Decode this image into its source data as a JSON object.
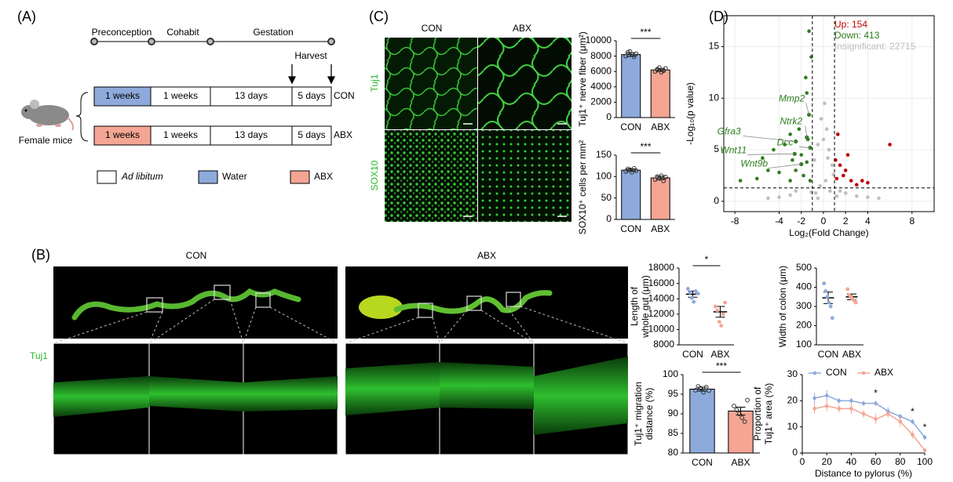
{
  "panel_a": {
    "label": "(A)",
    "phases": [
      "Preconception",
      "Cohabit",
      "Gestation"
    ],
    "harvest": "Harvest",
    "rows": [
      {
        "cells": [
          "1 weeks",
          "1 weeks",
          "13 days",
          "5 days"
        ],
        "group": "CON"
      },
      {
        "cells": [
          "1 weeks",
          "1 weeks",
          "13 days",
          "5 days"
        ],
        "group": "ABX"
      }
    ],
    "subject": "Female mice",
    "legend": [
      "Ad libitum",
      "Water",
      "ABX"
    ]
  },
  "panel_b": {
    "label": "(B)",
    "columns": [
      "CON",
      "ABX"
    ],
    "stain": "Tuj1"
  },
  "panel_c": {
    "label": "(C)",
    "columns": [
      "CON",
      "ABX"
    ],
    "rows": [
      "Tuj1",
      "SOX10"
    ]
  },
  "panel_d": {
    "label": "(D)"
  },
  "chart_data": [
    {
      "type": "bar",
      "ylabel": [
        "Tuj1⁺ nerve fiber (μm²)"
      ],
      "categories": [
        "CON",
        "ABX"
      ],
      "values": [
        8200,
        6200
      ],
      "errors": [
        250,
        200
      ],
      "points": [
        [
          8000,
          8500,
          8600,
          8200,
          7900,
          8300
        ],
        [
          6000,
          6300,
          6500,
          5900,
          6100,
          6400
        ]
      ],
      "colors": [
        "#8eaadb",
        "#f4a593"
      ],
      "ylim": [
        0,
        10000
      ],
      "yticks": [
        0,
        2000,
        4000,
        6000,
        8000,
        10000
      ],
      "annotation": "***"
    },
    {
      "type": "bar",
      "ylabel": [
        "SOX10⁺ cells per mm²"
      ],
      "categories": [
        "CON",
        "ABX"
      ],
      "values": [
        115,
        97
      ],
      "errors": [
        3,
        4
      ],
      "points": [
        [
          112,
          118,
          116,
          110,
          119,
          114
        ],
        [
          93,
          100,
          96,
          102,
          90,
          99
        ]
      ],
      "colors": [
        "#8eaadb",
        "#f4a593"
      ],
      "ylim": [
        0,
        150
      ],
      "yticks": [
        0,
        50,
        100,
        150
      ],
      "annotation": "***"
    },
    {
      "type": "scatter",
      "xlabel": "Log₂(Fold Change)",
      "ylabel": [
        "-Log₁₀(p value)"
      ],
      "xlim": [
        -9,
        10
      ],
      "ylim": [
        -1,
        18
      ],
      "xticks": [
        -8,
        -4,
        -2,
        0,
        2,
        4,
        8
      ],
      "yticks": [
        0,
        5,
        10,
        15
      ],
      "grid": true,
      "fc_cutoff": [
        -1,
        1
      ],
      "p_cutoff": 1.3,
      "series": [
        {
          "name": "Up: 154",
          "color": "#c00000",
          "x": [
            1.1,
            1.5,
            2,
            2.5,
            3.5,
            1.3,
            1.8,
            4,
            6,
            1.2,
            3,
            2.2
          ],
          "values": [
            4,
            3.5,
            3,
            2,
            2,
            6.5,
            2.5,
            1.8,
            5.5,
            2.2,
            1.6,
            4.5
          ]
        },
        {
          "name": "Down: 413",
          "color": "#2e7d1e",
          "x": [
            -1.3,
            -1.5,
            -2.2,
            -3,
            -3.5,
            -4.5,
            -2,
            -1.5,
            -2.5,
            -5,
            -6,
            -7.5,
            -3,
            -1.8,
            -4,
            -2.8,
            -1.4,
            -1.2,
            -5.5,
            -1.1,
            -1.6
          ],
          "values": [
            16.5,
            10.5,
            7,
            6.5,
            5.5,
            5,
            4.5,
            3.8,
            3,
            3,
            2.2,
            2,
            2,
            2.5,
            2.8,
            4,
            6,
            2,
            4.2,
            14,
            12
          ]
        },
        {
          "name": "Insignificant: 22715",
          "color": "#bfbfbf",
          "x": [
            -0.8,
            -0.5,
            0,
            0.3,
            0.5,
            0.8,
            0.2,
            -0.3,
            0.6,
            -0.7,
            1.5,
            2,
            -2.5,
            -3,
            3,
            -4,
            4,
            0.1,
            -0.2,
            0.4,
            -1.1,
            1.2,
            -0.5,
            0.9,
            -5,
            5
          ],
          "values": [
            4,
            5.5,
            6,
            7,
            5,
            3.5,
            2,
            1.5,
            1,
            0.8,
            1,
            0.8,
            1,
            0.6,
            0.5,
            0.4,
            0.4,
            9.5,
            8,
            4.2,
            0.9,
            0.5,
            0.3,
            2.6,
            0.3,
            0.3
          ]
        }
      ],
      "genes": [
        {
          "name": "Mmp2",
          "x": -1.3,
          "y": 8.4
        },
        {
          "name": "Ntrk2",
          "x": -1.5,
          "y": 6.2
        },
        {
          "name": "Dcc",
          "x": -1.2,
          "y": 5.2
        },
        {
          "name": "Gfra3",
          "x": -2.5,
          "y": 5.8
        },
        {
          "name": "Wnt11",
          "x": -2.6,
          "y": 4.6
        },
        {
          "name": "Wnt9b",
          "x": -2.0,
          "y": 3.6
        }
      ]
    },
    {
      "type": "dot",
      "ylabel": [
        "Length of",
        "whole gut (μm)"
      ],
      "categories": [
        "CON",
        "ABX"
      ],
      "values": [
        14600,
        12300
      ],
      "errors": [
        400,
        700
      ],
      "points": [
        [
          15300,
          14800,
          14100,
          13600,
          15000,
          14700
        ],
        [
          13000,
          12500,
          11000,
          10500,
          12000,
          13500
        ]
      ],
      "colors": [
        "#8eaadb",
        "#f4a593"
      ],
      "ylim": [
        8000,
        18000
      ],
      "yticks": [
        8000,
        10000,
        12000,
        14000,
        16000,
        18000
      ],
      "annotation": "*"
    },
    {
      "type": "dot",
      "ylabel": [
        "Width of colon (μm)"
      ],
      "categories": [
        "CON",
        "ABX"
      ],
      "values": [
        345,
        350
      ],
      "errors": [
        30,
        15
      ],
      "points": [
        [
          420,
          380,
          350,
          320,
          300,
          240
        ],
        [
          390,
          360,
          350,
          340,
          330,
          320
        ]
      ],
      "colors": [
        "#8eaadb",
        "#f4a593"
      ],
      "ylim": [
        100,
        500
      ],
      "yticks": [
        100,
        200,
        300,
        400,
        500
      ]
    },
    {
      "type": "bar",
      "ylabel": [
        "Tuj1⁺ migration",
        "distance (%)"
      ],
      "categories": [
        "CON",
        "ABX"
      ],
      "values": [
        96.3,
        90.7
      ],
      "errors": [
        0.5,
        1
      ],
      "points": [
        [
          96,
          97,
          96.5,
          95.5,
          96.8,
          95.9
        ],
        [
          92,
          91,
          90,
          89,
          88,
          93.5
        ]
      ],
      "colors": [
        "#8eaadb",
        "#f4a593"
      ],
      "ylim": [
        80,
        100
      ],
      "yticks": [
        80,
        85,
        90,
        95,
        100
      ],
      "annotation": "***"
    },
    {
      "type": "line",
      "xlabel": "Distance to pylorus (%)",
      "ylabel": [
        "Proportion of",
        "Tuj1⁺ area (%)"
      ],
      "x": [
        10,
        20,
        30,
        40,
        50,
        60,
        70,
        80,
        90,
        100
      ],
      "xlim": [
        0,
        100
      ],
      "xticks": [
        0,
        20,
        40,
        60,
        80,
        100
      ],
      "ylim": [
        0,
        30
      ],
      "yticks": [
        0,
        10,
        20,
        30
      ],
      "series": [
        {
          "name": "CON",
          "color": "#8eaadb",
          "values": [
            21,
            22,
            20,
            20,
            19,
            19,
            16,
            14,
            12,
            6
          ],
          "errors": [
            2,
            2,
            1,
            1,
            1,
            1,
            1.5,
            1,
            1,
            1
          ]
        },
        {
          "name": "ABX",
          "color": "#f4a593",
          "values": [
            17,
            18,
            17,
            17,
            15,
            13,
            15,
            12,
            7,
            1
          ],
          "errors": [
            2,
            2,
            1.5,
            2,
            1.5,
            2,
            1.5,
            2,
            1.5,
            1
          ]
        }
      ],
      "significance": [
        {
          "x": 60,
          "label": "*"
        },
        {
          "x": 90,
          "label": "*"
        },
        {
          "x": 100,
          "label": "*"
        }
      ]
    }
  ]
}
